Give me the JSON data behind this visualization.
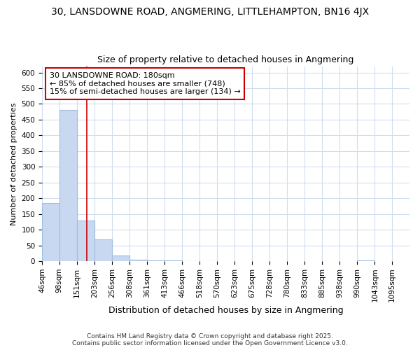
{
  "title1": "30, LANSDOWNE ROAD, ANGMERING, LITTLEHAMPTON, BN16 4JX",
  "title2": "Size of property relative to detached houses in Angmering",
  "xlabel": "Distribution of detached houses by size in Angmering",
  "ylabel": "Number of detached properties",
  "bin_edges": [
    46,
    98,
    151,
    203,
    256,
    308,
    361,
    413,
    466,
    518,
    570,
    623,
    675,
    728,
    780,
    833,
    885,
    938,
    990,
    1043,
    1095
  ],
  "bar_heights": [
    185,
    480,
    130,
    70,
    18,
    5,
    2,
    2,
    1,
    1,
    0,
    0,
    0,
    0,
    0,
    0,
    0,
    0,
    2,
    0
  ],
  "bar_color": "#c8d8f0",
  "bar_edgecolor": "#a0bce0",
  "background_color": "#ffffff",
  "grid_color": "#d0ddf0",
  "red_line_x": 180,
  "red_line_color": "#cc0000",
  "annotation_text": "30 LANSDOWNE ROAD: 180sqm\n← 85% of detached houses are smaller (748)\n15% of semi-detached houses are larger (134) →",
  "ylim": [
    0,
    620
  ],
  "yticks": [
    0,
    50,
    100,
    150,
    200,
    250,
    300,
    350,
    400,
    450,
    500,
    550,
    600
  ],
  "copyright_text": "Contains HM Land Registry data © Crown copyright and database right 2025.\nContains public sector information licensed under the Open Government Licence v3.0.",
  "title1_fontsize": 10,
  "title2_fontsize": 9,
  "xlabel_fontsize": 9,
  "ylabel_fontsize": 8,
  "tick_fontsize": 7.5,
  "annotation_fontsize": 8,
  "copyright_fontsize": 6.5
}
